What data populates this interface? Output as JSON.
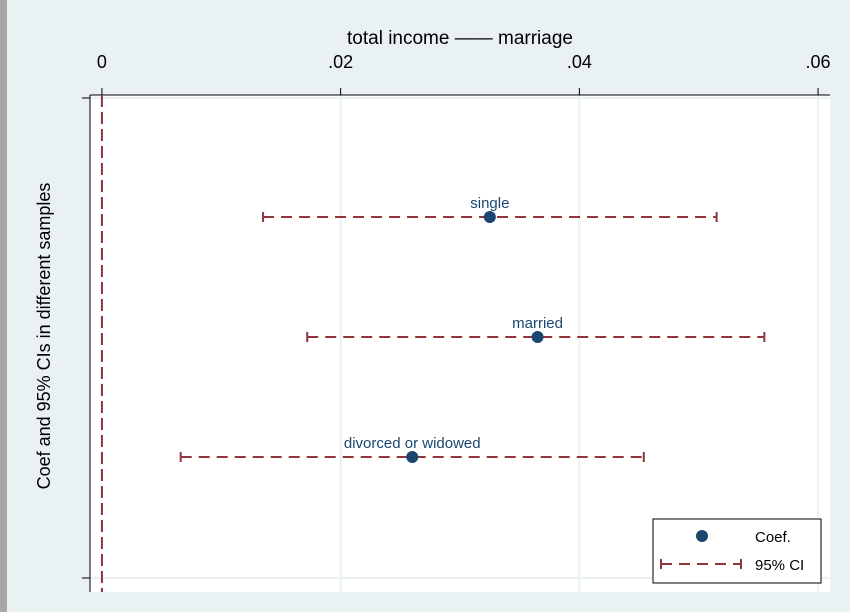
{
  "chart_data": {
    "type": "scatter",
    "title": "total income —— marriage",
    "ylabel": "Coef and 95% CIs in different samples",
    "x_axis_position": "top",
    "xlim": [
      -0.001,
      0.061
    ],
    "x_ticks": [
      0,
      0.02,
      0.04,
      0.06
    ],
    "x_tick_labels": [
      "0",
      ".02",
      ".04",
      ".06"
    ],
    "reference_line_x": 0,
    "grid": true,
    "categories": [
      "single",
      "married",
      "divorced or widowed"
    ],
    "series": [
      {
        "name": "Coef.",
        "values": [
          0.0325,
          0.0365,
          0.026
        ]
      },
      {
        "name": "95% CI",
        "lower": [
          0.0135,
          0.0172,
          0.0066
        ],
        "upper": [
          0.0515,
          0.0555,
          0.0454
        ]
      }
    ],
    "legend": {
      "position": "bottom-right",
      "entries": [
        "Coef.",
        "95% CI"
      ]
    },
    "colors": {
      "marker": "#1a476f",
      "ci": "#90353b",
      "label": "#1a476f",
      "plot_bg": "#ffffff",
      "page_bg": "#eaf1f3",
      "grid": "#eaf1f3"
    }
  }
}
